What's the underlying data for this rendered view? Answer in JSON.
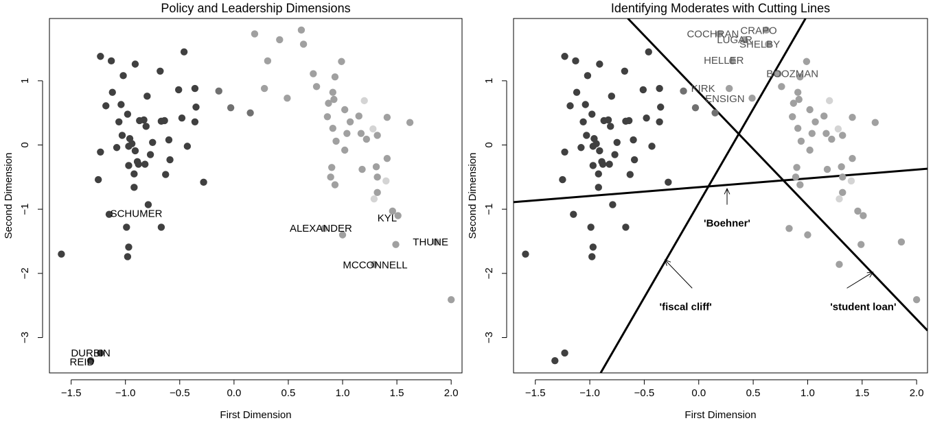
{
  "chart_data": [
    {
      "type": "scatter",
      "title": "Policy and Leadership Dimensions",
      "xlabel": "First Dimension",
      "ylabel": "Second Dimension",
      "xlim": [
        -1.7,
        2.1
      ],
      "ylim": [
        -3.55,
        1.97
      ],
      "xticks": [
        -1.5,
        -1.0,
        -0.5,
        0.0,
        0.5,
        1.0,
        1.5,
        2.0
      ],
      "xtick_labels": [
        "−1.5",
        "−1.0",
        "−0.5",
        "0.0",
        "0.5",
        "1.0",
        "1.5",
        "2.0"
      ],
      "yticks": [
        -3,
        -2,
        -1,
        0,
        1
      ],
      "ytick_labels": [
        "−3",
        "−2",
        "−1",
        "0",
        "1"
      ],
      "grid": false,
      "points": [
        [
          -1.23,
          1.38,
          "#404040"
        ],
        [
          -1.13,
          1.31,
          "#404040"
        ],
        [
          -0.91,
          1.26,
          "#404040"
        ],
        [
          -0.68,
          1.15,
          "#404040"
        ],
        [
          -0.46,
          1.45,
          "#404040"
        ],
        [
          -1.02,
          1.08,
          "#404040"
        ],
        [
          -1.18,
          0.61,
          "#404040"
        ],
        [
          -1.12,
          0.82,
          "#404040"
        ],
        [
          -1.04,
          0.63,
          "#404040"
        ],
        [
          -0.98,
          0.48,
          "#404040"
        ],
        [
          -0.8,
          0.76,
          "#404040"
        ],
        [
          -0.87,
          0.38,
          "#404040"
        ],
        [
          -0.83,
          0.39,
          "#404040"
        ],
        [
          -0.67,
          0.37,
          "#404040"
        ],
        [
          -0.64,
          0.38,
          "#404040"
        ],
        [
          -0.51,
          0.86,
          "#404040"
        ],
        [
          -0.36,
          0.88,
          "#404040"
        ],
        [
          -0.35,
          0.59,
          "#404040"
        ],
        [
          -0.48,
          0.42,
          "#404040"
        ],
        [
          -0.36,
          0.36,
          "#404040"
        ],
        [
          -1.06,
          0.36,
          "#404040"
        ],
        [
          -0.81,
          0.29,
          "#404040"
        ],
        [
          -0.75,
          0.04,
          "#404040"
        ],
        [
          -0.6,
          0.08,
          "#404040"
        ],
        [
          -0.43,
          -0.02,
          "#404040"
        ],
        [
          -1.03,
          0.15,
          "#404040"
        ],
        [
          -0.96,
          0.1,
          "#404040"
        ],
        [
          -0.94,
          0.02,
          "#404040"
        ],
        [
          -0.97,
          -0.02,
          "#404040"
        ],
        [
          -1.08,
          -0.04,
          "#404040"
        ],
        [
          -1.23,
          -0.11,
          "#404040"
        ],
        [
          -0.91,
          -0.09,
          "#404040"
        ],
        [
          -0.89,
          -0.26,
          "#404040"
        ],
        [
          -0.88,
          -0.3,
          "#404040"
        ],
        [
          -0.97,
          -0.32,
          "#404040"
        ],
        [
          -0.82,
          -0.3,
          "#404040"
        ],
        [
          -0.77,
          -0.15,
          "#404040"
        ],
        [
          -0.59,
          -0.23,
          "#404040"
        ],
        [
          -0.92,
          -0.45,
          "#404040"
        ],
        [
          -0.92,
          -0.66,
          "#404040"
        ],
        [
          -0.63,
          -0.46,
          "#404040"
        ],
        [
          -0.28,
          -0.58,
          "#404040"
        ],
        [
          -1.25,
          -0.54,
          "#404040"
        ],
        [
          -0.79,
          -0.93,
          "#404040"
        ],
        [
          -1.15,
          -1.08,
          "#404040"
        ],
        [
          -0.99,
          -1.28,
          "#404040"
        ],
        [
          -0.67,
          -1.28,
          "#404040"
        ],
        [
          -0.97,
          -1.59,
          "#404040"
        ],
        [
          -0.98,
          -1.74,
          "#404040"
        ],
        [
          -1.59,
          -1.7,
          "#404040"
        ],
        [
          -1.32,
          -3.36,
          "#404040"
        ],
        [
          -1.23,
          -3.24,
          "#404040"
        ],
        [
          -0.14,
          0.84,
          "#707070"
        ],
        [
          -0.03,
          0.58,
          "#707070"
        ],
        [
          0.15,
          0.5,
          "#707070"
        ],
        [
          0.19,
          1.73,
          "#a0a0a0"
        ],
        [
          0.42,
          1.64,
          "#a0a0a0"
        ],
        [
          0.62,
          1.79,
          "#a0a0a0"
        ],
        [
          0.64,
          1.57,
          "#a0a0a0"
        ],
        [
          0.31,
          1.31,
          "#a0a0a0"
        ],
        [
          0.28,
          0.88,
          "#a0a0a0"
        ],
        [
          0.49,
          0.73,
          "#a0a0a0"
        ],
        [
          0.73,
          1.11,
          "#a0a0a0"
        ],
        [
          0.76,
          0.91,
          "#a0a0a0"
        ],
        [
          0.93,
          1.06,
          "#a0a0a0"
        ],
        [
          0.99,
          1.3,
          "#a0a0a0"
        ],
        [
          0.91,
          0.82,
          "#a0a0a0"
        ],
        [
          0.87,
          0.65,
          "#a0a0a0"
        ],
        [
          0.92,
          0.71,
          "#a0a0a0"
        ],
        [
          1.02,
          0.55,
          "#a0a0a0"
        ],
        [
          0.86,
          0.44,
          "#a0a0a0"
        ],
        [
          1.07,
          0.36,
          "#a0a0a0"
        ],
        [
          1.15,
          0.45,
          "#a0a0a0"
        ],
        [
          1.41,
          0.43,
          "#a0a0a0"
        ],
        [
          1.62,
          0.35,
          "#a0a0a0"
        ],
        [
          0.91,
          0.26,
          "#a0a0a0"
        ],
        [
          1.04,
          0.18,
          "#a0a0a0"
        ],
        [
          1.17,
          0.18,
          "#a0a0a0"
        ],
        [
          1.22,
          0.09,
          "#a0a0a0"
        ],
        [
          0.94,
          0.06,
          "#a0a0a0"
        ],
        [
          1.02,
          -0.08,
          "#a0a0a0"
        ],
        [
          1.32,
          0.15,
          "#a0a0a0"
        ],
        [
          1.31,
          -0.34,
          "#a0a0a0"
        ],
        [
          1.41,
          -0.21,
          "#a0a0a0"
        ],
        [
          1.18,
          -0.38,
          "#a0a0a0"
        ],
        [
          0.9,
          -0.35,
          "#a0a0a0"
        ],
        [
          0.89,
          -0.5,
          "#a0a0a0"
        ],
        [
          1.32,
          -0.5,
          "#a0a0a0"
        ],
        [
          1.32,
          -0.74,
          "#a0a0a0"
        ],
        [
          0.93,
          -0.62,
          "#a0a0a0"
        ],
        [
          1.46,
          -1.03,
          "#a0a0a0"
        ],
        [
          1.51,
          -1.1,
          "#a0a0a0"
        ],
        [
          1.86,
          -1.51,
          "#a0a0a0"
        ],
        [
          1.49,
          -1.55,
          "#a0a0a0"
        ],
        [
          1.29,
          -1.86,
          "#a0a0a0"
        ],
        [
          1.0,
          -1.4,
          "#a0a0a0"
        ],
        [
          0.83,
          -1.3,
          "#a0a0a0"
        ],
        [
          2.0,
          -2.41,
          "#a0a0a0"
        ],
        [
          1.2,
          0.69,
          "#d4d4d4"
        ],
        [
          1.28,
          0.25,
          "#d4d4d4"
        ],
        [
          1.4,
          -0.56,
          "#d4d4d4"
        ],
        [
          1.29,
          -0.84,
          "#d4d4d4"
        ]
      ],
      "annotations": [
        {
          "text": "SCHUMER",
          "x": -0.9,
          "y": -1.08
        },
        {
          "text": "ALEXANDER",
          "x": 0.8,
          "y": -1.31
        },
        {
          "text": "KYL",
          "x": 1.41,
          "y": -1.15
        },
        {
          "text": "THUNE",
          "x": 1.81,
          "y": -1.52
        },
        {
          "text": "MCCONNELL",
          "x": 1.3,
          "y": -1.88
        },
        {
          "text": "DURBIN",
          "x": -1.32,
          "y": -3.25
        },
        {
          "text": "REID",
          "x": -1.4,
          "y": -3.39
        }
      ]
    },
    {
      "type": "scatter",
      "title": "Identifying Moderates with Cutting Lines",
      "xlabel": "First Dimension",
      "ylabel": "Second Dimension",
      "xlim": [
        -1.7,
        2.1
      ],
      "ylim": [
        -3.55,
        1.97
      ],
      "xticks": [
        -1.5,
        -1.0,
        -0.5,
        0.0,
        0.5,
        1.0,
        1.5,
        2.0
      ],
      "xtick_labels": [
        "−1.5",
        "−1.0",
        "−0.5",
        "0.0",
        "0.5",
        "1.0",
        "1.5",
        "2.0"
      ],
      "yticks": [
        -3,
        -2,
        -1,
        0,
        1
      ],
      "ytick_labels": [
        "−3",
        "−2",
        "−1",
        "0",
        "1"
      ],
      "grid": false,
      "cutting_lines": [
        {
          "name": "'Boehner'",
          "x1": -1.7,
          "y1": -0.89,
          "x2": 2.1,
          "y2": -0.37
        },
        {
          "name": "'fiscal cliff'",
          "x1": -0.9,
          "y1": -3.55,
          "x2": 0.98,
          "y2": 1.97
        },
        {
          "name": "'student loan'",
          "x1": -0.65,
          "y1": 1.97,
          "x2": 2.1,
          "y2": -2.89
        }
      ],
      "points": [
        [
          -1.23,
          1.38,
          "#404040"
        ],
        [
          -1.13,
          1.31,
          "#404040"
        ],
        [
          -0.91,
          1.26,
          "#404040"
        ],
        [
          -0.68,
          1.15,
          "#404040"
        ],
        [
          -0.46,
          1.45,
          "#404040"
        ],
        [
          -1.02,
          1.08,
          "#404040"
        ],
        [
          -1.18,
          0.61,
          "#404040"
        ],
        [
          -1.12,
          0.82,
          "#404040"
        ],
        [
          -1.04,
          0.63,
          "#404040"
        ],
        [
          -0.98,
          0.48,
          "#404040"
        ],
        [
          -0.8,
          0.76,
          "#404040"
        ],
        [
          -0.87,
          0.38,
          "#404040"
        ],
        [
          -0.83,
          0.39,
          "#404040"
        ],
        [
          -0.67,
          0.37,
          "#404040"
        ],
        [
          -0.64,
          0.38,
          "#404040"
        ],
        [
          -0.51,
          0.86,
          "#404040"
        ],
        [
          -0.36,
          0.88,
          "#404040"
        ],
        [
          -0.35,
          0.59,
          "#404040"
        ],
        [
          -0.48,
          0.42,
          "#404040"
        ],
        [
          -0.36,
          0.36,
          "#404040"
        ],
        [
          -1.06,
          0.36,
          "#404040"
        ],
        [
          -0.81,
          0.29,
          "#404040"
        ],
        [
          -0.75,
          0.04,
          "#404040"
        ],
        [
          -0.6,
          0.08,
          "#404040"
        ],
        [
          -0.43,
          -0.02,
          "#404040"
        ],
        [
          -1.03,
          0.15,
          "#404040"
        ],
        [
          -0.96,
          0.1,
          "#404040"
        ],
        [
          -0.94,
          0.02,
          "#404040"
        ],
        [
          -0.97,
          -0.02,
          "#404040"
        ],
        [
          -1.08,
          -0.04,
          "#404040"
        ],
        [
          -1.23,
          -0.11,
          "#404040"
        ],
        [
          -0.91,
          -0.09,
          "#404040"
        ],
        [
          -0.89,
          -0.26,
          "#404040"
        ],
        [
          -0.88,
          -0.3,
          "#404040"
        ],
        [
          -0.97,
          -0.32,
          "#404040"
        ],
        [
          -0.82,
          -0.3,
          "#404040"
        ],
        [
          -0.77,
          -0.15,
          "#404040"
        ],
        [
          -0.59,
          -0.23,
          "#404040"
        ],
        [
          -0.92,
          -0.45,
          "#404040"
        ],
        [
          -0.92,
          -0.66,
          "#404040"
        ],
        [
          -0.63,
          -0.46,
          "#404040"
        ],
        [
          -0.28,
          -0.58,
          "#404040"
        ],
        [
          -1.25,
          -0.54,
          "#404040"
        ],
        [
          -0.79,
          -0.93,
          "#404040"
        ],
        [
          -1.15,
          -1.08,
          "#404040"
        ],
        [
          -0.99,
          -1.28,
          "#404040"
        ],
        [
          -0.67,
          -1.28,
          "#404040"
        ],
        [
          -0.97,
          -1.59,
          "#404040"
        ],
        [
          -0.98,
          -1.74,
          "#404040"
        ],
        [
          -1.59,
          -1.7,
          "#404040"
        ],
        [
          -1.32,
          -3.36,
          "#404040"
        ],
        [
          -1.23,
          -3.24,
          "#404040"
        ],
        [
          -0.14,
          0.84,
          "#707070"
        ],
        [
          -0.03,
          0.58,
          "#707070"
        ],
        [
          0.15,
          0.5,
          "#707070"
        ],
        [
          0.19,
          1.73,
          "#a0a0a0"
        ],
        [
          0.42,
          1.64,
          "#a0a0a0"
        ],
        [
          0.62,
          1.79,
          "#a0a0a0"
        ],
        [
          0.64,
          1.57,
          "#a0a0a0"
        ],
        [
          0.31,
          1.31,
          "#a0a0a0"
        ],
        [
          0.28,
          0.88,
          "#a0a0a0"
        ],
        [
          0.49,
          0.73,
          "#a0a0a0"
        ],
        [
          0.73,
          1.11,
          "#a0a0a0"
        ],
        [
          0.76,
          0.91,
          "#a0a0a0"
        ],
        [
          0.93,
          1.06,
          "#a0a0a0"
        ],
        [
          0.99,
          1.3,
          "#a0a0a0"
        ],
        [
          0.91,
          0.82,
          "#a0a0a0"
        ],
        [
          0.87,
          0.65,
          "#a0a0a0"
        ],
        [
          0.92,
          0.71,
          "#a0a0a0"
        ],
        [
          1.02,
          0.55,
          "#a0a0a0"
        ],
        [
          0.86,
          0.44,
          "#a0a0a0"
        ],
        [
          1.07,
          0.36,
          "#a0a0a0"
        ],
        [
          1.15,
          0.45,
          "#a0a0a0"
        ],
        [
          1.41,
          0.43,
          "#a0a0a0"
        ],
        [
          1.62,
          0.35,
          "#a0a0a0"
        ],
        [
          0.91,
          0.26,
          "#a0a0a0"
        ],
        [
          1.04,
          0.18,
          "#a0a0a0"
        ],
        [
          1.17,
          0.18,
          "#a0a0a0"
        ],
        [
          1.22,
          0.09,
          "#a0a0a0"
        ],
        [
          0.94,
          0.06,
          "#a0a0a0"
        ],
        [
          1.02,
          -0.08,
          "#a0a0a0"
        ],
        [
          1.32,
          0.15,
          "#a0a0a0"
        ],
        [
          1.31,
          -0.34,
          "#a0a0a0"
        ],
        [
          1.41,
          -0.21,
          "#a0a0a0"
        ],
        [
          1.18,
          -0.38,
          "#a0a0a0"
        ],
        [
          0.9,
          -0.35,
          "#a0a0a0"
        ],
        [
          0.89,
          -0.5,
          "#a0a0a0"
        ],
        [
          1.32,
          -0.5,
          "#a0a0a0"
        ],
        [
          1.32,
          -0.74,
          "#a0a0a0"
        ],
        [
          0.93,
          -0.62,
          "#a0a0a0"
        ],
        [
          1.46,
          -1.03,
          "#a0a0a0"
        ],
        [
          1.51,
          -1.1,
          "#a0a0a0"
        ],
        [
          1.86,
          -1.51,
          "#a0a0a0"
        ],
        [
          1.49,
          -1.55,
          "#a0a0a0"
        ],
        [
          1.29,
          -1.86,
          "#a0a0a0"
        ],
        [
          1.0,
          -1.4,
          "#a0a0a0"
        ],
        [
          0.83,
          -1.3,
          "#a0a0a0"
        ],
        [
          2.0,
          -2.41,
          "#a0a0a0"
        ],
        [
          1.2,
          0.69,
          "#d4d4d4"
        ],
        [
          1.28,
          0.25,
          "#d4d4d4"
        ],
        [
          1.4,
          -0.56,
          "#d4d4d4"
        ],
        [
          1.29,
          -0.84,
          "#d4d4d4"
        ]
      ],
      "annotations": [
        {
          "text": "COCHRAN",
          "x": 0.13,
          "y": 1.72,
          "color": "#505050"
        },
        {
          "text": "CRAPO",
          "x": 0.55,
          "y": 1.77,
          "color": "#505050"
        },
        {
          "text": "LUGAR",
          "x": 0.33,
          "y": 1.63,
          "color": "#505050"
        },
        {
          "text": "SHELBY",
          "x": 0.56,
          "y": 1.56,
          "color": "#505050"
        },
        {
          "text": "HELLER",
          "x": 0.23,
          "y": 1.31,
          "color": "#505050"
        },
        {
          "text": "BOOZMAN",
          "x": 0.86,
          "y": 1.1,
          "color": "#505050"
        },
        {
          "text": "KIRK",
          "x": 0.04,
          "y": 0.87,
          "color": "#505050"
        },
        {
          "text": "ENSIGN",
          "x": 0.24,
          "y": 0.71,
          "color": "#505050"
        }
      ],
      "line_labels": [
        {
          "text": "'Boehner'",
          "x": 0.26,
          "y": -1.23,
          "arrow_from": [
            0.26,
            -0.93
          ],
          "arrow_to": [
            0.26,
            -0.68
          ]
        },
        {
          "text": "'fiscal cliff'",
          "x": -0.12,
          "y": -2.53,
          "arrow_from": [
            -0.06,
            -2.23
          ],
          "arrow_to": [
            -0.31,
            -1.79
          ]
        },
        {
          "text": "'student loan'",
          "x": 1.51,
          "y": -2.53,
          "arrow_from": [
            1.36,
            -2.23
          ],
          "arrow_to": [
            1.6,
            -1.98
          ]
        }
      ]
    }
  ]
}
